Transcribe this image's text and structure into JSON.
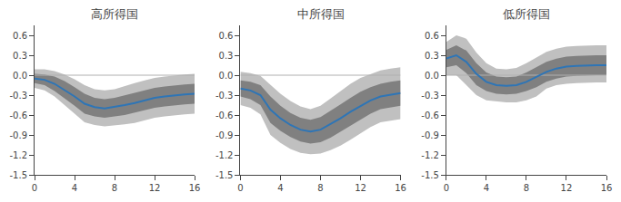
{
  "chart_data": [
    {
      "type": "line",
      "title": "高所得国",
      "x": [
        0,
        1,
        2,
        3,
        4,
        5,
        6,
        7,
        8,
        9,
        10,
        11,
        12,
        13,
        14,
        15,
        16
      ],
      "series": [
        {
          "type": "band",
          "color": "#c0c0c0",
          "lower": [
            -0.19,
            -0.23,
            -0.32,
            -0.45,
            -0.58,
            -0.71,
            -0.75,
            -0.77,
            -0.75,
            -0.74,
            -0.72,
            -0.68,
            -0.64,
            -0.62,
            -0.6,
            -0.59,
            -0.58
          ],
          "upper": [
            0.09,
            0.09,
            0.06,
            0.01,
            -0.06,
            -0.15,
            -0.21,
            -0.23,
            -0.21,
            -0.16,
            -0.12,
            -0.08,
            -0.04,
            -0.02,
            0.0,
            0.01,
            0.02
          ]
        },
        {
          "type": "band",
          "color": "#808080",
          "lower": [
            -0.12,
            -0.15,
            -0.24,
            -0.35,
            -0.46,
            -0.58,
            -0.62,
            -0.64,
            -0.62,
            -0.6,
            -0.57,
            -0.53,
            -0.49,
            -0.47,
            -0.45,
            -0.44,
            -0.43
          ],
          "upper": [
            0.02,
            0.01,
            -0.02,
            -0.09,
            -0.18,
            -0.28,
            -0.34,
            -0.36,
            -0.34,
            -0.3,
            -0.27,
            -0.23,
            -0.19,
            -0.17,
            -0.15,
            -0.14,
            -0.13
          ]
        },
        {
          "type": "reference_line",
          "color": "#b0b0b0",
          "y": 0
        },
        {
          "type": "line",
          "color": "#2e75b6",
          "values": [
            -0.05,
            -0.07,
            -0.13,
            -0.22,
            -0.32,
            -0.43,
            -0.48,
            -0.5,
            -0.48,
            -0.45,
            -0.42,
            -0.38,
            -0.34,
            -0.32,
            -0.3,
            -0.29,
            -0.28
          ]
        }
      ],
      "xlim": [
        0,
        16
      ],
      "xticks": [
        0,
        4,
        8,
        12,
        16
      ],
      "ylim": [
        -1.5,
        0.75
      ],
      "yticks": [
        -1.5,
        -1.2,
        -0.9,
        -0.6,
        -0.3,
        {
          "value": 0,
          "label": "0.0"
        },
        0.3,
        0.6
      ],
      "grid": false
    },
    {
      "type": "line",
      "title": "中所得国",
      "x": [
        0,
        1,
        2,
        3,
        4,
        5,
        6,
        7,
        8,
        9,
        10,
        11,
        12,
        13,
        14,
        15,
        16
      ],
      "series": [
        {
          "type": "band",
          "color": "#c0c0c0",
          "lower": [
            -0.45,
            -0.49,
            -0.59,
            -0.9,
            -1.02,
            -1.11,
            -1.17,
            -1.19,
            -1.18,
            -1.13,
            -1.06,
            -0.97,
            -0.88,
            -0.78,
            -0.71,
            -0.68,
            -0.66
          ],
          "upper": [
            0.05,
            0.03,
            -0.01,
            -0.14,
            -0.28,
            -0.39,
            -0.47,
            -0.51,
            -0.46,
            -0.35,
            -0.24,
            -0.13,
            -0.04,
            0.02,
            0.07,
            0.1,
            0.12
          ]
        },
        {
          "type": "band",
          "color": "#808080",
          "lower": [
            -0.32,
            -0.36,
            -0.45,
            -0.72,
            -0.84,
            -0.93,
            -1.0,
            -1.03,
            -1.01,
            -0.94,
            -0.86,
            -0.76,
            -0.67,
            -0.58,
            -0.51,
            -0.48,
            -0.46
          ],
          "upper": [
            -0.08,
            -0.1,
            -0.15,
            -0.32,
            -0.46,
            -0.57,
            -0.64,
            -0.67,
            -0.63,
            -0.54,
            -0.44,
            -0.34,
            -0.25,
            -0.18,
            -0.13,
            -0.1,
            -0.08
          ]
        },
        {
          "type": "reference_line",
          "color": "#b0b0b0",
          "y": 0
        },
        {
          "type": "line",
          "color": "#2e75b6",
          "values": [
            -0.2,
            -0.23,
            -0.3,
            -0.52,
            -0.65,
            -0.75,
            -0.82,
            -0.85,
            -0.82,
            -0.74,
            -0.65,
            -0.55,
            -0.46,
            -0.38,
            -0.32,
            -0.29,
            -0.27
          ]
        }
      ],
      "xlim": [
        0,
        16
      ],
      "xticks": [
        0,
        4,
        8,
        12,
        16
      ],
      "ylim": [
        -1.5,
        0.75
      ],
      "yticks": [
        -1.5,
        -1.2,
        -0.9,
        -0.6,
        -0.3,
        {
          "value": 0,
          "label": "0.0"
        },
        0.3,
        0.6
      ],
      "grid": false
    },
    {
      "type": "line",
      "title": "低所得国",
      "x": [
        0,
        1,
        2,
        3,
        4,
        5,
        6,
        7,
        8,
        9,
        10,
        11,
        12,
        13,
        14,
        15,
        16
      ],
      "series": [
        {
          "type": "band",
          "color": "#c0c0c0",
          "lower": [
            0.0,
            0.0,
            -0.15,
            -0.3,
            -0.38,
            -0.4,
            -0.41,
            -0.41,
            -0.38,
            -0.32,
            -0.2,
            -0.15,
            -0.13,
            -0.12,
            -0.11,
            -0.11,
            -0.11
          ],
          "upper": [
            0.5,
            0.6,
            0.55,
            0.34,
            0.18,
            0.1,
            0.09,
            0.11,
            0.18,
            0.27,
            0.35,
            0.4,
            0.43,
            0.44,
            0.45,
            0.45,
            0.45
          ]
        },
        {
          "type": "band",
          "color": "#808080",
          "lower": [
            0.12,
            0.15,
            0.03,
            -0.15,
            -0.24,
            -0.28,
            -0.29,
            -0.28,
            -0.24,
            -0.18,
            -0.1,
            -0.05,
            -0.02,
            -0.01,
            0.0,
            0.0,
            0.0
          ],
          "upper": [
            0.38,
            0.45,
            0.37,
            0.18,
            0.04,
            -0.02,
            -0.03,
            -0.02,
            0.04,
            0.12,
            0.2,
            0.25,
            0.28,
            0.29,
            0.3,
            0.3,
            0.3
          ]
        },
        {
          "type": "reference_line",
          "color": "#b0b0b0",
          "y": 0
        },
        {
          "type": "line",
          "color": "#2e75b6",
          "values": [
            0.25,
            0.3,
            0.2,
            0.02,
            -0.1,
            -0.15,
            -0.16,
            -0.15,
            -0.1,
            -0.03,
            0.05,
            0.1,
            0.13,
            0.14,
            0.15,
            0.15,
            0.15
          ]
        }
      ],
      "xlim": [
        0,
        16
      ],
      "xticks": [
        0,
        4,
        8,
        12,
        16
      ],
      "ylim": [
        -1.5,
        0.75
      ],
      "yticks": [
        -1.5,
        -1.2,
        -0.9,
        -0.6,
        -0.3,
        {
          "value": 0,
          "label": "0.0"
        },
        0.3,
        0.6
      ],
      "grid": false
    }
  ]
}
